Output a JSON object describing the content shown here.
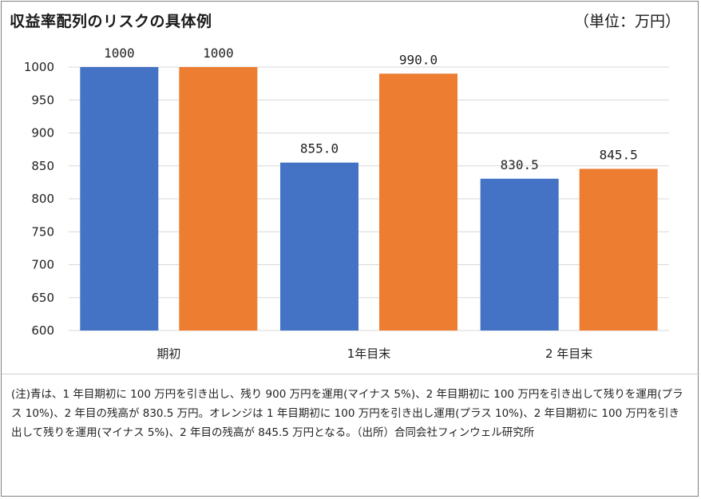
{
  "chart_data": {
    "type": "bar",
    "title": "収益率配列のリスクの具体例",
    "unit_label": "（単位：万円）",
    "categories": [
      "期初",
      "1年目末",
      "2 年目末"
    ],
    "series": [
      {
        "values": [
          1000,
          855.0,
          830.5
        ],
        "labels": [
          "1000",
          "855.0",
          "830.5"
        ],
        "color": "#4472c4"
      },
      {
        "values": [
          1000,
          990.0,
          845.5
        ],
        "labels": [
          "1000",
          "990.0",
          "845.5"
        ],
        "color": "#ed7d31"
      }
    ],
    "ylim": [
      600,
      1000
    ],
    "yticks": [
      600,
      650,
      700,
      750,
      800,
      850,
      900,
      950,
      1000
    ],
    "grid": true,
    "xlabel": "",
    "ylabel": ""
  },
  "note": "(注)青は、1 年目期初に 100 万円を引き出し、残り 900 万円を運用(マイナス 5%)、2 年目期初に 100 万円を引き出して残りを運用(プラス 10%)、2 年目の残高が 830.5 万円。オレンジは 1 年目期初に 100 万円を引き出し運用(プラス 10%)、2 年目期初に 100 万円を引き出して残りを運用(マイナス 5%)、2 年目の残高が 845.5 万円となる。（出所）合同会社フィンウェル研究所"
}
